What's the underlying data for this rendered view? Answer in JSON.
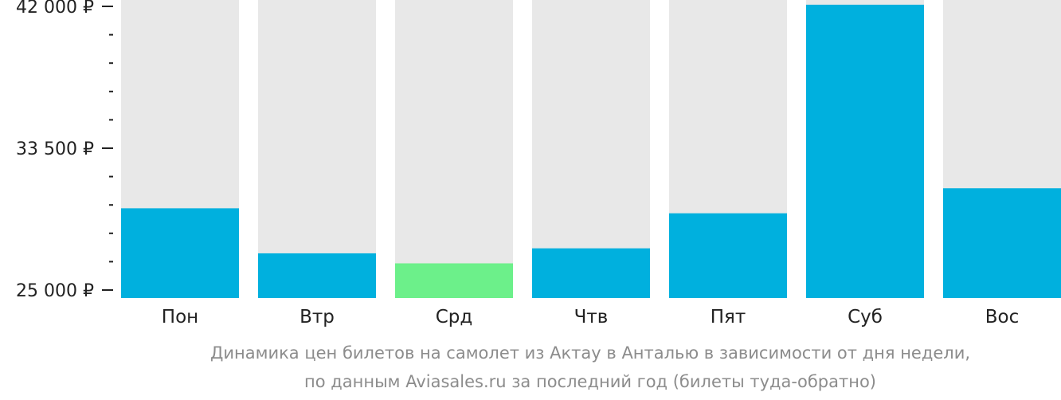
{
  "chart_data": {
    "type": "bar",
    "categories": [
      "Пон",
      "Втр",
      "Срд",
      "Чтв",
      "Пят",
      "Суб",
      "Вос"
    ],
    "values": [
      29900,
      27200,
      26600,
      27500,
      29600,
      42100,
      31100
    ],
    "highlight_index": 2,
    "ylim": [
      25000,
      43000
    ],
    "y_ticks": [
      {
        "value": 25000,
        "label": "25 000 ₽"
      },
      {
        "value": 33500,
        "label": "33 500 ₽"
      },
      {
        "value": 42000,
        "label": "42 000 ₽"
      }
    ],
    "y_minor_tick_step": 1700,
    "colors": {
      "bar": "#00b0de",
      "highlight": "#6cf08a",
      "background_bar": "#e8e8e8",
      "axis": "#222222"
    },
    "caption": [
      "Динамика цен билетов на самолет из Актау в Анталью в зависимости от дня недели,",
      "по данным Aviasales.ru за последний год (билеты туда-обратно)"
    ]
  }
}
